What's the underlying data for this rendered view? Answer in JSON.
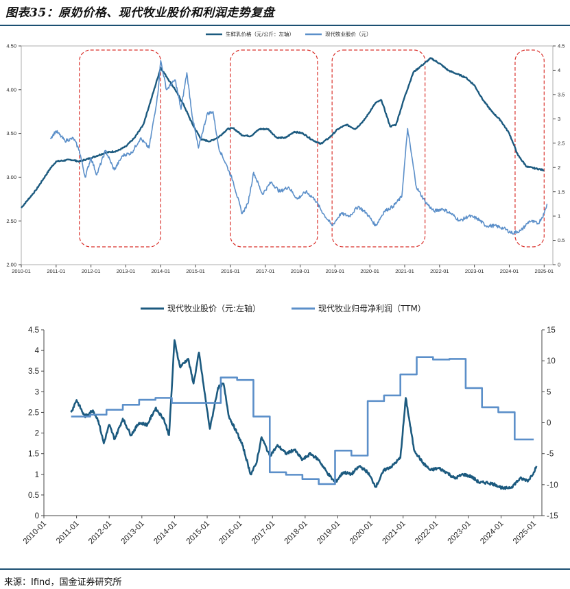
{
  "figure_title": "图表35：原奶价格、现代牧业股价和利润走势复盘",
  "source": "来源：Ifind，国金证券研究所",
  "colors": {
    "dark_blue": "#1c5a7f",
    "light_blue": "#5b8fc9",
    "highlight_box": "#d9302b",
    "rule": "#1b4f72"
  },
  "chart_data": [
    {
      "type": "line",
      "legend_position": "top-center",
      "x_ticks": [
        "2010-01",
        "2011-01",
        "2012-01",
        "2013-01",
        "2014-01",
        "2015-01",
        "2016-01",
        "2017-01",
        "2018-01",
        "2019-01",
        "2020-01",
        "2021-01",
        "2022-01",
        "2023-01",
        "2024-01",
        "2025-01"
      ],
      "y_left": {
        "min": 2.0,
        "max": 4.5,
        "ticks": [
          "2.00",
          "2.50",
          "3.00",
          "3.50",
          "4.00",
          "4.50"
        ]
      },
      "y_right": {
        "min": 0,
        "max": 4.5,
        "ticks": [
          "0",
          "0.5",
          "1",
          "1.5",
          "2",
          "2.5",
          "3",
          "3.5",
          "4",
          "4.5"
        ]
      },
      "highlight_periods": [
        [
          "2011-09",
          "2014-01"
        ],
        [
          "2016-01",
          "2018-07"
        ],
        [
          "2018-12",
          "2021-08"
        ],
        [
          "2024-03",
          "2025-01"
        ]
      ],
      "series": [
        {
          "name": "生鲜乳价格（元/公斤：左轴）",
          "axis": "left",
          "color": "#1c5a7f",
          "points": [
            [
              "2010-01",
              2.65
            ],
            [
              "2010-06",
              2.85
            ],
            [
              "2010-11",
              3.1
            ],
            [
              "2011-01",
              3.18
            ],
            [
              "2011-06",
              3.2
            ],
            [
              "2011-09",
              3.18
            ],
            [
              "2012-01",
              3.22
            ],
            [
              "2012-06",
              3.28
            ],
            [
              "2012-10",
              3.3
            ],
            [
              "2013-01",
              3.35
            ],
            [
              "2013-04",
              3.45
            ],
            [
              "2013-07",
              3.6
            ],
            [
              "2013-10",
              3.92
            ],
            [
              "2014-01",
              4.25
            ],
            [
              "2014-03",
              4.15
            ],
            [
              "2014-06",
              4.0
            ],
            [
              "2014-09",
              3.82
            ],
            [
              "2014-12",
              3.6
            ],
            [
              "2015-03",
              3.43
            ],
            [
              "2015-06",
              3.41
            ],
            [
              "2015-09",
              3.46
            ],
            [
              "2015-12",
              3.55
            ],
            [
              "2016-02",
              3.56
            ],
            [
              "2016-05",
              3.48
            ],
            [
              "2016-08",
              3.47
            ],
            [
              "2016-11",
              3.55
            ],
            [
              "2017-02",
              3.55
            ],
            [
              "2017-05",
              3.45
            ],
            [
              "2017-08",
              3.45
            ],
            [
              "2017-11",
              3.52
            ],
            [
              "2018-02",
              3.5
            ],
            [
              "2018-05",
              3.43
            ],
            [
              "2018-08",
              3.38
            ],
            [
              "2018-11",
              3.45
            ],
            [
              "2019-02",
              3.55
            ],
            [
              "2019-05",
              3.6
            ],
            [
              "2019-08",
              3.55
            ],
            [
              "2019-11",
              3.65
            ],
            [
              "2020-03",
              3.85
            ],
            [
              "2020-05",
              3.88
            ],
            [
              "2020-08",
              3.58
            ],
            [
              "2020-10",
              3.6
            ],
            [
              "2021-01",
              3.92
            ],
            [
              "2021-04",
              4.2
            ],
            [
              "2021-07",
              4.28
            ],
            [
              "2021-10",
              4.36
            ],
            [
              "2022-01",
              4.3
            ],
            [
              "2022-04",
              4.22
            ],
            [
              "2022-07",
              4.18
            ],
            [
              "2022-10",
              4.14
            ],
            [
              "2023-01",
              4.05
            ],
            [
              "2023-04",
              3.88
            ],
            [
              "2023-07",
              3.75
            ],
            [
              "2023-10",
              3.65
            ],
            [
              "2024-01",
              3.5
            ],
            [
              "2024-04",
              3.25
            ],
            [
              "2024-07",
              3.12
            ],
            [
              "2024-10",
              3.1
            ],
            [
              "2025-01",
              3.08
            ]
          ]
        },
        {
          "name": "现代牧业股价（元）",
          "axis": "right",
          "color": "#5b8fc9",
          "points": [
            [
              "2010-11",
              2.6
            ],
            [
              "2011-01",
              2.75
            ],
            [
              "2011-04",
              2.55
            ],
            [
              "2011-07",
              2.6
            ],
            [
              "2011-09",
              2.35
            ],
            [
              "2011-11",
              1.8
            ],
            [
              "2012-01",
              2.2
            ],
            [
              "2012-03",
              1.85
            ],
            [
              "2012-06",
              2.35
            ],
            [
              "2012-09",
              1.95
            ],
            [
              "2012-12",
              2.25
            ],
            [
              "2013-03",
              2.3
            ],
            [
              "2013-06",
              2.6
            ],
            [
              "2013-09",
              2.4
            ],
            [
              "2013-12",
              3.5
            ],
            [
              "2014-01",
              4.2
            ],
            [
              "2014-03",
              3.6
            ],
            [
              "2014-06",
              3.8
            ],
            [
              "2014-08",
              3.2
            ],
            [
              "2014-10",
              3.95
            ],
            [
              "2014-12",
              3.0
            ],
            [
              "2015-02",
              2.4
            ],
            [
              "2015-05",
              3.1
            ],
            [
              "2015-07",
              3.15
            ],
            [
              "2015-09",
              2.4
            ],
            [
              "2015-12",
              2.0
            ],
            [
              "2016-02",
              1.7
            ],
            [
              "2016-05",
              1.05
            ],
            [
              "2016-07",
              1.25
            ],
            [
              "2016-09",
              1.9
            ],
            [
              "2016-12",
              1.45
            ],
            [
              "2017-03",
              1.7
            ],
            [
              "2017-06",
              1.5
            ],
            [
              "2017-09",
              1.6
            ],
            [
              "2017-12",
              1.35
            ],
            [
              "2018-03",
              1.5
            ],
            [
              "2018-06",
              1.35
            ],
            [
              "2018-09",
              1.05
            ],
            [
              "2018-12",
              0.8
            ],
            [
              "2019-03",
              1.05
            ],
            [
              "2019-06",
              1.0
            ],
            [
              "2019-09",
              1.2
            ],
            [
              "2019-12",
              1.05
            ],
            [
              "2020-03",
              0.8
            ],
            [
              "2020-06",
              1.1
            ],
            [
              "2020-09",
              1.2
            ],
            [
              "2020-12",
              1.4
            ],
            [
              "2021-02",
              2.8
            ],
            [
              "2021-05",
              1.6
            ],
            [
              "2021-08",
              1.3
            ],
            [
              "2021-11",
              1.1
            ],
            [
              "2022-02",
              1.15
            ],
            [
              "2022-05",
              1.05
            ],
            [
              "2022-08",
              0.9
            ],
            [
              "2022-11",
              1.0
            ],
            [
              "2023-02",
              0.95
            ],
            [
              "2023-05",
              0.8
            ],
            [
              "2023-08",
              0.8
            ],
            [
              "2023-11",
              0.75
            ],
            [
              "2024-02",
              0.65
            ],
            [
              "2024-05",
              0.7
            ],
            [
              "2024-08",
              0.9
            ],
            [
              "2024-11",
              0.85
            ],
            [
              "2025-01",
              1.05
            ],
            [
              "2025-02",
              1.25
            ]
          ]
        }
      ]
    },
    {
      "type": "line",
      "legend_position": "top-center",
      "x_ticks": [
        "2010-01",
        "2011-01",
        "2012-01",
        "2013-01",
        "2014-01",
        "2015-01",
        "2016-01",
        "2017-01",
        "2018-01",
        "2019-01",
        "2020-01",
        "2021-01",
        "2022-01",
        "2023-01",
        "2024-01",
        "2025-01"
      ],
      "y_left": {
        "min": 0,
        "max": 4.5,
        "ticks": [
          "0",
          "0.5",
          "1",
          "1.5",
          "2",
          "2.5",
          "3",
          "3.5",
          "4",
          "4.5"
        ]
      },
      "y_right": {
        "min": -15,
        "max": 15,
        "ticks": [
          "-15",
          "-10",
          "-5",
          "0",
          "5",
          "10",
          "15"
        ]
      },
      "series": [
        {
          "name": "现代牧业股价（元:左轴）",
          "axis": "left",
          "color": "#1c5a7f",
          "points": [
            [
              "2010-11",
              2.5
            ],
            [
              "2011-01",
              2.8
            ],
            [
              "2011-04",
              2.4
            ],
            [
              "2011-07",
              2.55
            ],
            [
              "2011-09",
              2.3
            ],
            [
              "2011-11",
              1.75
            ],
            [
              "2012-01",
              2.2
            ],
            [
              "2012-03",
              1.85
            ],
            [
              "2012-06",
              2.35
            ],
            [
              "2012-09",
              1.95
            ],
            [
              "2012-12",
              2.25
            ],
            [
              "2013-03",
              2.2
            ],
            [
              "2013-06",
              2.6
            ],
            [
              "2013-09",
              2.35
            ],
            [
              "2013-11",
              1.95
            ],
            [
              "2014-01",
              4.25
            ],
            [
              "2014-03",
              3.6
            ],
            [
              "2014-06",
              3.8
            ],
            [
              "2014-08",
              3.2
            ],
            [
              "2014-10",
              3.95
            ],
            [
              "2014-12",
              3.0
            ],
            [
              "2015-02",
              2.1
            ],
            [
              "2015-05",
              3.1
            ],
            [
              "2015-07",
              3.2
            ],
            [
              "2015-09",
              2.4
            ],
            [
              "2015-12",
              2.0
            ],
            [
              "2016-02",
              1.7
            ],
            [
              "2016-05",
              1.0
            ],
            [
              "2016-07",
              1.25
            ],
            [
              "2016-09",
              1.9
            ],
            [
              "2016-12",
              1.45
            ],
            [
              "2017-03",
              1.7
            ],
            [
              "2017-06",
              1.5
            ],
            [
              "2017-09",
              1.6
            ],
            [
              "2017-12",
              1.35
            ],
            [
              "2018-03",
              1.5
            ],
            [
              "2018-06",
              1.35
            ],
            [
              "2018-09",
              1.05
            ],
            [
              "2018-12",
              0.8
            ],
            [
              "2019-03",
              1.05
            ],
            [
              "2019-06",
              1.0
            ],
            [
              "2019-09",
              1.2
            ],
            [
              "2019-12",
              1.05
            ],
            [
              "2020-03",
              0.7
            ],
            [
              "2020-06",
              1.1
            ],
            [
              "2020-09",
              1.2
            ],
            [
              "2020-12",
              1.4
            ],
            [
              "2021-02",
              2.85
            ],
            [
              "2021-05",
              1.6
            ],
            [
              "2021-08",
              1.3
            ],
            [
              "2021-11",
              1.1
            ],
            [
              "2022-02",
              1.15
            ],
            [
              "2022-05",
              1.05
            ],
            [
              "2022-08",
              0.9
            ],
            [
              "2022-11",
              1.0
            ],
            [
              "2023-02",
              0.95
            ],
            [
              "2023-05",
              0.8
            ],
            [
              "2023-08",
              0.8
            ],
            [
              "2023-11",
              0.75
            ],
            [
              "2024-02",
              0.65
            ],
            [
              "2024-05",
              0.7
            ],
            [
              "2024-08",
              0.9
            ],
            [
              "2024-11",
              0.85
            ],
            [
              "2025-01",
              1.05
            ],
            [
              "2025-02",
              1.2
            ]
          ]
        },
        {
          "name": "现代牧业归母净利润（TTM）",
          "axis": "right",
          "color": "#5b8fc9",
          "step": true,
          "points": [
            [
              "2010-11",
              1.0
            ],
            [
              "2011-06",
              1.3
            ],
            [
              "2011-12",
              2.1
            ],
            [
              "2012-06",
              2.9
            ],
            [
              "2012-12",
              3.7
            ],
            [
              "2013-06",
              4.0
            ],
            [
              "2013-12",
              3.2
            ],
            [
              "2014-06",
              3.2
            ],
            [
              "2015-06",
              7.3
            ],
            [
              "2015-12",
              6.9
            ],
            [
              "2016-06",
              1.0
            ],
            [
              "2016-12",
              -8.0
            ],
            [
              "2017-06",
              -8.4
            ],
            [
              "2017-12",
              -9.1
            ],
            [
              "2018-06",
              -9.9
            ],
            [
              "2018-12",
              -4.5
            ],
            [
              "2019-06",
              -5.3
            ],
            [
              "2019-12",
              3.5
            ],
            [
              "2020-06",
              4.4
            ],
            [
              "2020-12",
              7.8
            ],
            [
              "2021-06",
              10.6
            ],
            [
              "2021-12",
              10.2
            ],
            [
              "2022-06",
              10.3
            ],
            [
              "2022-12",
              5.6
            ],
            [
              "2023-06",
              2.5
            ],
            [
              "2023-12",
              1.7
            ],
            [
              "2024-06",
              -2.7
            ],
            [
              "2025-01",
              -2.7
            ]
          ]
        }
      ]
    }
  ]
}
